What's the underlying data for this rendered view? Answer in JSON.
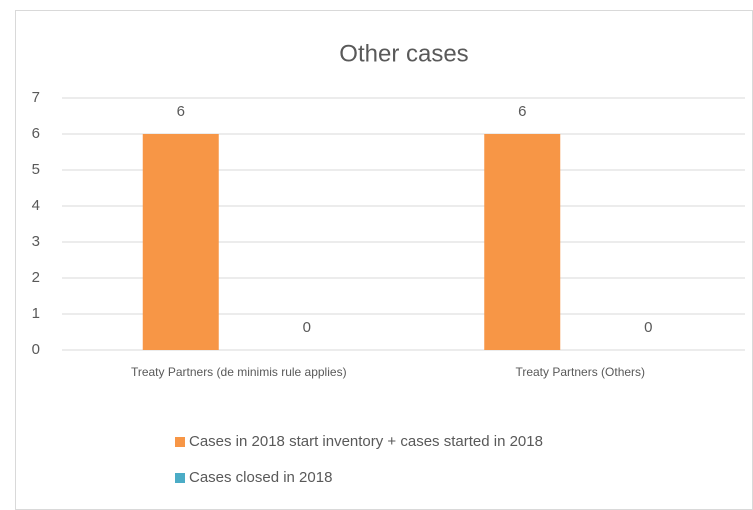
{
  "chart_data": {
    "type": "bar",
    "title": "Other cases",
    "categories": [
      "Treaty Partners (de minimis rule applies)",
      "Treaty Partners (Others)"
    ],
    "series": [
      {
        "name": "Cases in 2018 start inventory + cases started in 2018",
        "color": "#f79646",
        "values": [
          6,
          6
        ]
      },
      {
        "name": "Cases closed in 2018",
        "color": "#4bacc6",
        "values": [
          0,
          0
        ]
      }
    ],
    "ylim": [
      0,
      7
    ],
    "yticks": [
      0,
      1,
      2,
      3,
      4,
      5,
      6,
      7
    ],
    "grid": true,
    "legend": "bottom"
  }
}
